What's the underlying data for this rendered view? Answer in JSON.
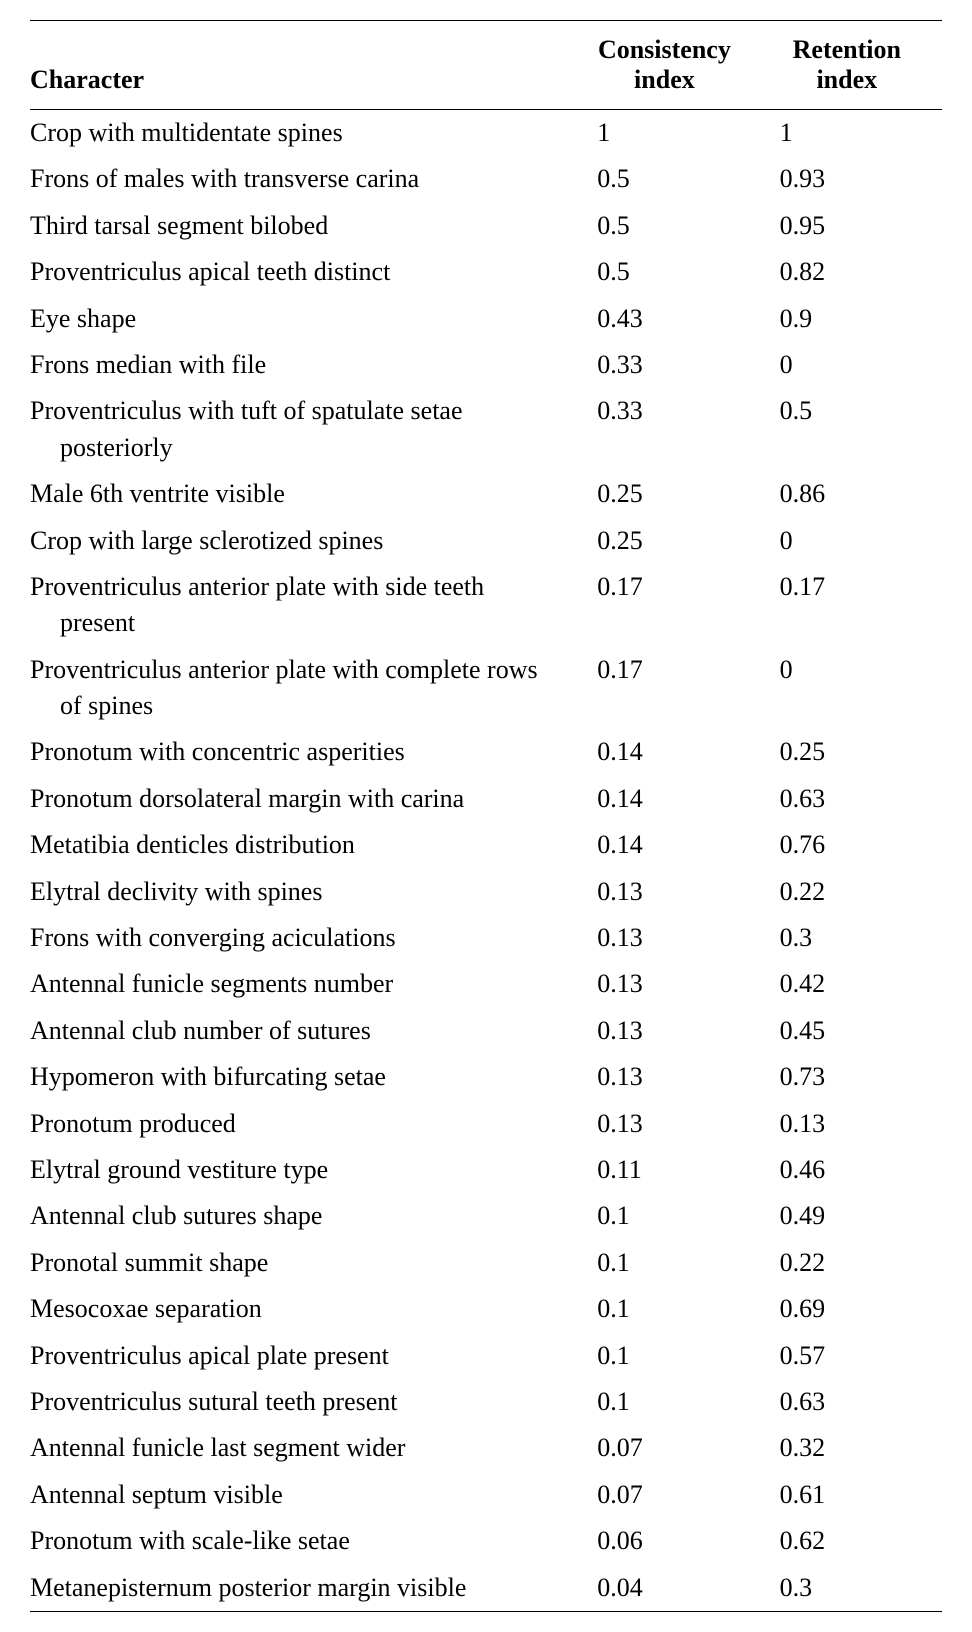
{
  "table": {
    "columns": [
      {
        "label": "Character"
      },
      {
        "label_line1": "Consistency",
        "label_line2": "index"
      },
      {
        "label_line1": "Retention",
        "label_line2": "index"
      }
    ],
    "rows": [
      {
        "character": "Crop with multidentate spines",
        "ci": "1",
        "ri": "1"
      },
      {
        "character": "Frons of males with transverse carina",
        "ci": "0.5",
        "ri": "0.93"
      },
      {
        "character": "Third tarsal segment bilobed",
        "ci": "0.5",
        "ri": "0.95"
      },
      {
        "character": "Proventriculus apical teeth distinct",
        "ci": "0.5",
        "ri": "0.82"
      },
      {
        "character": "Eye shape",
        "ci": "0.43",
        "ri": "0.9"
      },
      {
        "character": "Frons median with file",
        "ci": "0.33",
        "ri": "0"
      },
      {
        "character": "Proventriculus with tuft of spatulate setae posteriorly",
        "ci": "0.33",
        "ri": "0.5"
      },
      {
        "character": "Male 6th ventrite visible",
        "ci": "0.25",
        "ri": "0.86"
      },
      {
        "character": "Crop with large sclerotized spines",
        "ci": "0.25",
        "ri": "0"
      },
      {
        "character": "Proventriculus anterior plate with side teeth present",
        "ci": "0.17",
        "ri": "0.17"
      },
      {
        "character": "Proventriculus anterior plate with complete rows of spines",
        "ci": "0.17",
        "ri": "0"
      },
      {
        "character": "Pronotum with concentric asperities",
        "ci": "0.14",
        "ri": "0.25"
      },
      {
        "character": "Pronotum dorsolateral margin with carina",
        "ci": "0.14",
        "ri": "0.63"
      },
      {
        "character": "Metatibia denticles distribution",
        "ci": "0.14",
        "ri": "0.76"
      },
      {
        "character": "Elytral declivity with spines",
        "ci": "0.13",
        "ri": "0.22"
      },
      {
        "character": "Frons with converging aciculations",
        "ci": "0.13",
        "ri": "0.3"
      },
      {
        "character": "Antennal funicle segments number",
        "ci": "0.13",
        "ri": "0.42"
      },
      {
        "character": "Antennal club number of sutures",
        "ci": "0.13",
        "ri": "0.45"
      },
      {
        "character": "Hypomeron with bifurcating setae",
        "ci": "0.13",
        "ri": "0.73"
      },
      {
        "character": "Pronotum produced",
        "ci": "0.13",
        "ri": "0.13"
      },
      {
        "character": "Elytral ground vestiture type",
        "ci": "0.11",
        "ri": "0.46"
      },
      {
        "character": "Antennal club sutures shape",
        "ci": "0.1",
        "ri": "0.49"
      },
      {
        "character": "Pronotal summit shape",
        "ci": "0.1",
        "ri": "0.22"
      },
      {
        "character": "Mesocoxae separation",
        "ci": "0.1",
        "ri": "0.69"
      },
      {
        "character": "Proventriculus apical plate present",
        "ci": "0.1",
        "ri": "0.57"
      },
      {
        "character": "Proventriculus sutural teeth present",
        "ci": "0.1",
        "ri": "0.63"
      },
      {
        "character": "Antennal funicle last segment wider",
        "ci": "0.07",
        "ri": "0.32"
      },
      {
        "character": "Antennal septum visible",
        "ci": "0.07",
        "ri": "0.61"
      },
      {
        "character": "Pronotum with scale-like setae",
        "ci": "0.06",
        "ri": "0.62"
      },
      {
        "character": "Metanepisternum posterior margin visible",
        "ci": "0.04",
        "ri": "0.3"
      }
    ]
  },
  "styling": {
    "font_family": "Book Antiqua, Palatino Linotype, Palatino, Georgia, serif",
    "background_color": "#ffffff",
    "text_color": "#000000",
    "border_color": "#000000",
    "header_font_weight": "bold",
    "body_font_size": 26,
    "header_font_size": 26,
    "top_border_width": 1.5,
    "header_bottom_border_width": 1,
    "bottom_border_width": 1.5
  }
}
